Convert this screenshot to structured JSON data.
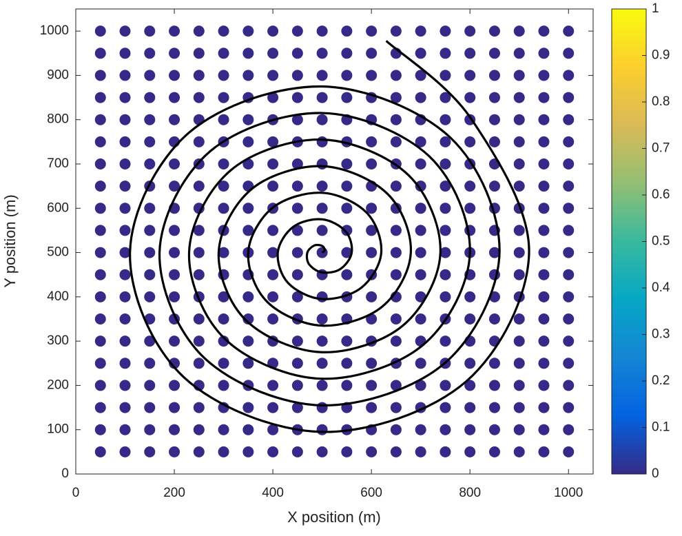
{
  "chart_data": {
    "type": "scatter",
    "xlabel": "X position (m)",
    "ylabel": "Y position (m)",
    "xlim": [
      0,
      1050
    ],
    "ylim": [
      0,
      1050
    ],
    "xticks": [
      0,
      200,
      400,
      600,
      800,
      1000
    ],
    "yticks": [
      0,
      100,
      200,
      300,
      400,
      500,
      600,
      700,
      800,
      900,
      1000
    ],
    "series": [
      {
        "type": "scatter",
        "color": "#352a87",
        "x": [
          50,
          100,
          150,
          200,
          250,
          300,
          350,
          400,
          450,
          500,
          550,
          600,
          650,
          700,
          750,
          800,
          850,
          900,
          950,
          1000,
          50,
          100,
          150,
          200,
          250,
          300,
          350,
          400,
          450,
          500,
          550,
          600,
          650,
          700,
          750,
          800,
          850,
          900,
          950,
          1000,
          50,
          100,
          150,
          200,
          250,
          300,
          350,
          400,
          450,
          500,
          550,
          600,
          650,
          700,
          750,
          800,
          850,
          900,
          950,
          1000,
          50,
          100,
          150,
          200,
          250,
          300,
          350,
          400,
          450,
          500,
          550,
          600,
          650,
          700,
          750,
          800,
          850,
          900,
          950,
          1000,
          50,
          100,
          150,
          200,
          250,
          300,
          350,
          400,
          450,
          500,
          550,
          600,
          650,
          700,
          750,
          800,
          850,
          900,
          950,
          1000,
          50,
          100,
          150,
          200,
          250,
          300,
          350,
          400,
          450,
          500,
          550,
          600,
          650,
          700,
          750,
          800,
          850,
          900,
          950,
          1000,
          50,
          100,
          150,
          200,
          250,
          300,
          350,
          400,
          450,
          500,
          550,
          600,
          650,
          700,
          750,
          800,
          850,
          900,
          950,
          1000,
          50,
          100,
          150,
          200,
          250,
          300,
          350,
          400,
          450,
          500,
          550,
          600,
          650,
          700,
          750,
          800,
          850,
          900,
          950,
          1000,
          50,
          100,
          150,
          200,
          250,
          300,
          350,
          400,
          450,
          500,
          550,
          600,
          650,
          700,
          750,
          800,
          850,
          900,
          950,
          1000,
          50,
          100,
          150,
          200,
          250,
          300,
          350,
          400,
          450,
          500,
          550,
          600,
          650,
          700,
          750,
          800,
          850,
          900,
          950,
          1000,
          50,
          100,
          150,
          200,
          250,
          300,
          350,
          400,
          450,
          500,
          550,
          600,
          650,
          700,
          750,
          800,
          850,
          900,
          950,
          1000,
          50,
          100,
          150,
          200,
          250,
          300,
          350,
          400,
          450,
          500,
          550,
          600,
          650,
          700,
          750,
          800,
          850,
          900,
          950,
          1000,
          50,
          100,
          150,
          200,
          250,
          300,
          350,
          400,
          450,
          500,
          550,
          600,
          650,
          700,
          750,
          800,
          850,
          900,
          950,
          1000,
          50,
          100,
          150,
          200,
          250,
          300,
          350,
          400,
          450,
          500,
          550,
          600,
          650,
          700,
          750,
          800,
          850,
          900,
          950,
          1000,
          50,
          100,
          150,
          200,
          250,
          300,
          350,
          400,
          450,
          500,
          550,
          600,
          650,
          700,
          750,
          800,
          850,
          900,
          950,
          1000,
          50,
          100,
          150,
          200,
          250,
          300,
          350,
          400,
          450,
          500,
          550,
          600,
          650,
          700,
          750,
          800,
          850,
          900,
          950,
          1000,
          50,
          100,
          150,
          200,
          250,
          300,
          350,
          400,
          450,
          500,
          550,
          600,
          650,
          700,
          750,
          800,
          850,
          900,
          950,
          1000,
          50,
          100,
          150,
          200,
          250,
          300,
          350,
          400,
          450,
          500,
          550,
          600,
          650,
          700,
          750,
          800,
          850,
          900,
          950,
          1000,
          50,
          100,
          150,
          200,
          250,
          300,
          350,
          400,
          450,
          500,
          550,
          600,
          650,
          700,
          750,
          800,
          850,
          900,
          950,
          1000,
          50,
          100,
          150,
          200,
          250,
          300,
          350,
          400,
          450,
          500,
          550,
          600,
          650,
          700,
          750,
          800,
          850,
          900,
          950,
          1000
        ],
        "y": [
          50,
          50,
          50,
          50,
          50,
          50,
          50,
          50,
          50,
          50,
          50,
          50,
          50,
          50,
          50,
          50,
          50,
          50,
          50,
          50,
          100,
          100,
          100,
          100,
          100,
          100,
          100,
          100,
          100,
          100,
          100,
          100,
          100,
          100,
          100,
          100,
          100,
          100,
          100,
          100,
          150,
          150,
          150,
          150,
          150,
          150,
          150,
          150,
          150,
          150,
          150,
          150,
          150,
          150,
          150,
          150,
          150,
          150,
          150,
          150,
          200,
          200,
          200,
          200,
          200,
          200,
          200,
          200,
          200,
          200,
          200,
          200,
          200,
          200,
          200,
          200,
          200,
          200,
          200,
          200,
          250,
          250,
          250,
          250,
          250,
          250,
          250,
          250,
          250,
          250,
          250,
          250,
          250,
          250,
          250,
          250,
          250,
          250,
          250,
          250,
          300,
          300,
          300,
          300,
          300,
          300,
          300,
          300,
          300,
          300,
          300,
          300,
          300,
          300,
          300,
          300,
          300,
          300,
          300,
          300,
          350,
          350,
          350,
          350,
          350,
          350,
          350,
          350,
          350,
          350,
          350,
          350,
          350,
          350,
          350,
          350,
          350,
          350,
          350,
          350,
          400,
          400,
          400,
          400,
          400,
          400,
          400,
          400,
          400,
          400,
          400,
          400,
          400,
          400,
          400,
          400,
          400,
          400,
          400,
          400,
          450,
          450,
          450,
          450,
          450,
          450,
          450,
          450,
          450,
          450,
          450,
          450,
          450,
          450,
          450,
          450,
          450,
          450,
          450,
          450,
          500,
          500,
          500,
          500,
          500,
          500,
          500,
          500,
          500,
          500,
          500,
          500,
          500,
          500,
          500,
          500,
          500,
          500,
          500,
          500,
          550,
          550,
          550,
          550,
          550,
          550,
          550,
          550,
          550,
          550,
          550,
          550,
          550,
          550,
          550,
          550,
          550,
          550,
          550,
          550,
          600,
          600,
          600,
          600,
          600,
          600,
          600,
          600,
          600,
          600,
          600,
          600,
          600,
          600,
          600,
          600,
          600,
          600,
          600,
          600,
          650,
          650,
          650,
          650,
          650,
          650,
          650,
          650,
          650,
          650,
          650,
          650,
          650,
          650,
          650,
          650,
          650,
          650,
          650,
          650,
          700,
          700,
          700,
          700,
          700,
          700,
          700,
          700,
          700,
          700,
          700,
          700,
          700,
          700,
          700,
          700,
          700,
          700,
          700,
          700,
          750,
          750,
          750,
          750,
          750,
          750,
          750,
          750,
          750,
          750,
          750,
          750,
          750,
          750,
          750,
          750,
          750,
          750,
          750,
          750,
          800,
          800,
          800,
          800,
          800,
          800,
          800,
          800,
          800,
          800,
          800,
          800,
          800,
          800,
          800,
          800,
          800,
          800,
          800,
          800,
          850,
          850,
          850,
          850,
          850,
          850,
          850,
          850,
          850,
          850,
          850,
          850,
          850,
          850,
          850,
          850,
          850,
          850,
          850,
          850,
          900,
          900,
          900,
          900,
          900,
          900,
          900,
          900,
          900,
          900,
          900,
          900,
          900,
          900,
          900,
          900,
          900,
          900,
          900,
          900,
          950,
          950,
          950,
          950,
          950,
          950,
          950,
          950,
          950,
          950,
          950,
          950,
          950,
          950,
          950,
          950,
          950,
          950,
          950,
          950,
          1000,
          1000,
          1000,
          1000,
          1000,
          1000,
          1000,
          1000,
          1000,
          1000,
          1000,
          1000,
          1000,
          1000,
          1000,
          1000,
          1000,
          1000,
          1000,
          1000
        ]
      },
      {
        "type": "line",
        "color": "#000000",
        "x": [
          500,
          505.3,
          500,
          484.1,
          470,
          473.5,
          500,
          537.1,
          560,
          547.7,
          500,
          441.7,
          410,
          431.1,
          500,
          579.5,
          620,
          590.2,
          500,
          399.2,
          350,
          388.6,
          500,
          622,
          680,
          632.6,
          500,
          356.8,
          290,
          346.2,
          500,
          664.4,
          740,
          675,
          500,
          314.4,
          230,
          303.8,
          500,
          706.8,
          800,
          717.4,
          500,
          272,
          170,
          261.4,
          500,
          749.3,
          860,
          759.9,
          500,
          229.5,
          110,
          218.9,
          500,
          791.7,
          920,
          802.3,
          630
        ],
        "y": [
          500,
          505.3,
          515,
          515.9,
          500,
          473.5,
          455,
          462.9,
          500,
          547.7,
          575,
          558.3,
          500,
          431.1,
          395,
          420.5,
          500,
          590.2,
          635,
          600.8,
          500,
          388.6,
          335,
          378,
          500,
          632.6,
          695,
          643.2,
          500,
          346.2,
          275,
          335.6,
          500,
          675,
          755,
          685.6,
          500,
          303.8,
          215,
          293.2,
          500,
          717.4,
          815,
          728,
          500,
          261.4,
          155,
          250.7,
          500,
          759.9,
          875,
          770.5,
          500,
          218.9,
          95,
          208.3,
          500,
          802.3,
          978
        ]
      }
    ],
    "colorbar": {
      "lim": [
        0,
        1
      ],
      "ticks": [
        0,
        0.1,
        0.2,
        0.3,
        0.4,
        0.5,
        0.6,
        0.7,
        0.8,
        0.9,
        1
      ],
      "colormap": [
        "#352a87",
        "#0363e1",
        "#1485d4",
        "#06a7c6",
        "#38b99e",
        "#92bf73",
        "#d9ba56",
        "#fcce2e",
        "#f9fb0e"
      ]
    }
  }
}
